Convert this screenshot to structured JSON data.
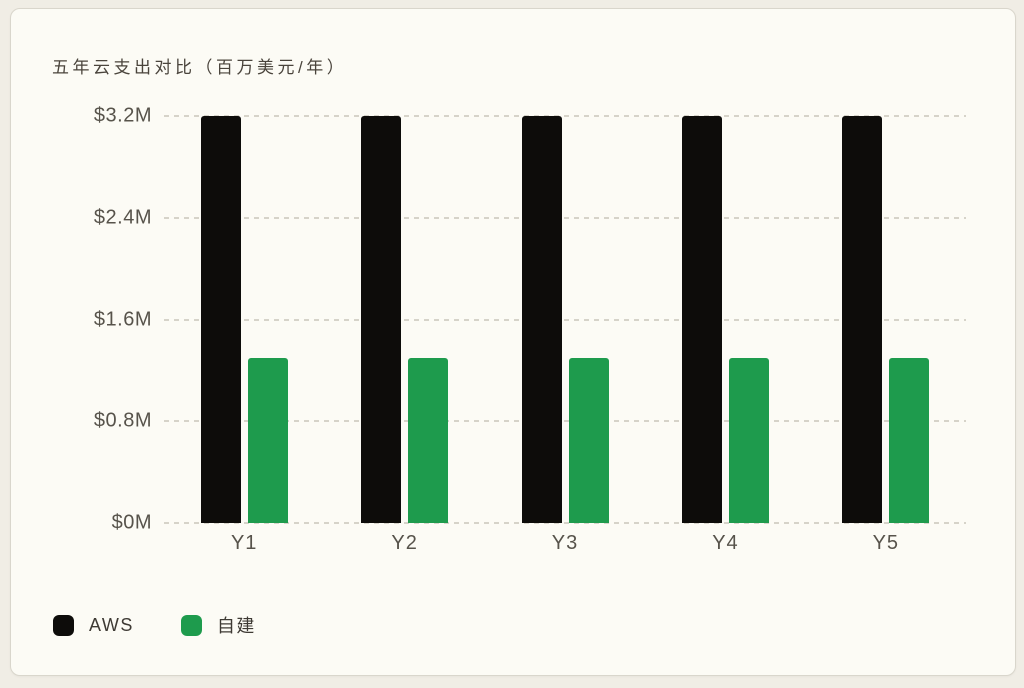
{
  "chart_data": {
    "type": "bar",
    "title": "五年云支出对比（百万美元/年）",
    "categories": [
      "Y1",
      "Y2",
      "Y3",
      "Y4",
      "Y5"
    ],
    "series": [
      {
        "name": "AWS",
        "color": "#0d0c0a",
        "values": [
          3.2,
          3.2,
          3.2,
          3.2,
          3.2
        ]
      },
      {
        "name": "自建",
        "color": "#1e9b4d",
        "values": [
          1.3,
          1.3,
          1.3,
          1.3,
          1.3
        ]
      }
    ],
    "xlabel": "",
    "ylabel": "",
    "ylim": [
      0,
      3.2
    ],
    "y_ticks": [
      {
        "label": "$3.2M",
        "value": 3.2
      },
      {
        "label": "$2.4M",
        "value": 2.4
      },
      {
        "label": "$1.6M",
        "value": 1.6
      },
      {
        "label": "$0.8M",
        "value": 0.8
      },
      {
        "label": "$0M",
        "value": 0
      }
    ],
    "grid": "horizontal-dashed",
    "grid_color": "#d6d3c9",
    "legend_position": "bottom-left"
  },
  "card": {
    "background": "#fcfbf5",
    "page_background": "#f0ede5",
    "border_color": "#d9d6cc"
  }
}
